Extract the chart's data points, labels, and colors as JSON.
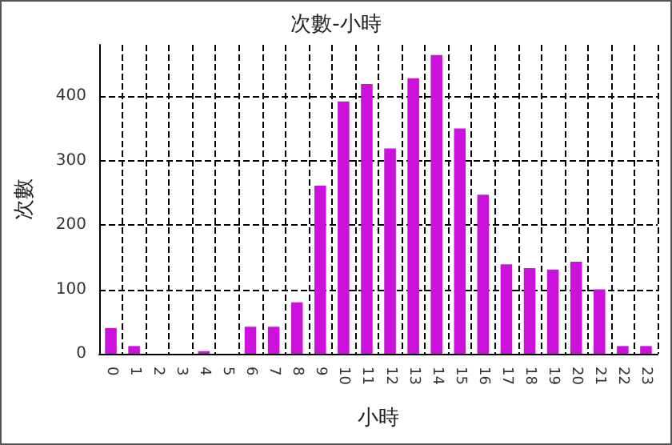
{
  "chart_data": {
    "type": "bar",
    "title": "次數-小時",
    "xlabel": "小時",
    "ylabel": "次數",
    "categories": [
      "0",
      "1",
      "2",
      "3",
      "4",
      "5",
      "6",
      "7",
      "8",
      "9",
      "10",
      "11",
      "12",
      "13",
      "14",
      "15",
      "16",
      "17",
      "18",
      "19",
      "20",
      "21",
      "22",
      "23"
    ],
    "values": [
      40,
      12,
      0,
      0,
      4,
      0,
      42,
      42,
      80,
      261,
      392,
      419,
      319,
      428,
      464,
      350,
      247,
      139,
      133,
      131,
      143,
      100,
      12,
      12
    ],
    "color": "#cc11dd",
    "ylim": [
      0,
      480
    ],
    "yticks": [
      0,
      100,
      200,
      300,
      400
    ],
    "grid": true
  }
}
